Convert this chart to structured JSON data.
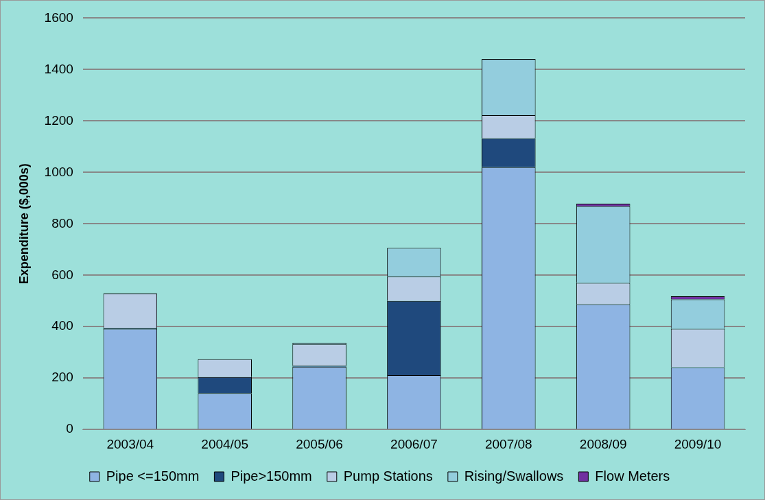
{
  "chart_data": {
    "type": "bar",
    "stacked": true,
    "ylabel": "Expenditure ($,000s)",
    "categories": [
      "2003/04",
      "2004/05",
      "2005/06",
      "2006/07",
      "2007/08",
      "2008/09",
      "2009/10"
    ],
    "series": [
      {
        "name": "Pipe <=150mm",
        "color": "#8eb4e3",
        "values": [
          391,
          141,
          244,
          211,
          1020,
          487,
          242
        ]
      },
      {
        "name": "Pipe>150mm",
        "color": "#1f497d",
        "values": [
          4,
          63,
          4,
          289,
          112,
          null,
          null
        ]
      },
      {
        "name": "Pump Stations",
        "color": "#b9cde5",
        "values": [
          134,
          69,
          84,
          95,
          90,
          83,
          149
        ]
      },
      {
        "name": "Rising/Swallows",
        "color": "#93cddd",
        "values": [
          null,
          null,
          5,
          111,
          219,
          298,
          115
        ]
      },
      {
        "name": "Flow Meters",
        "color": "#7030a0",
        "values": [
          null,
          null,
          null,
          null,
          null,
          10,
          12
        ]
      }
    ],
    "ylim": [
      0,
      1600
    ],
    "yticks": [
      0,
      200,
      400,
      600,
      800,
      1000,
      1200,
      1400,
      1600
    ],
    "grid": "y",
    "legend": "bottom"
  }
}
